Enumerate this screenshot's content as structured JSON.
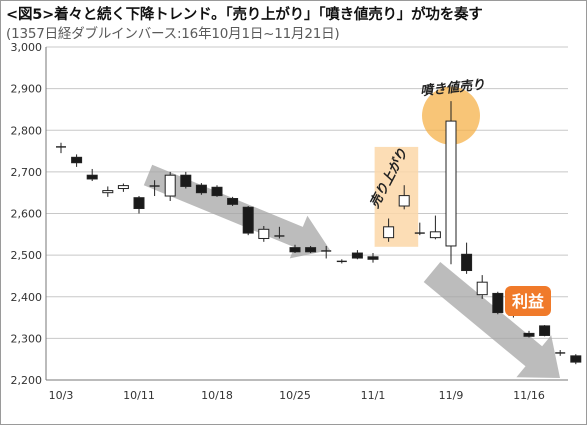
{
  "title": "<図5>着々と続く下降トレンド。「売り上がり」「噴き値売り」が功を奏す",
  "subtitle": "(1357日経ダブルインバース:16年10月1日~11月21日)",
  "chart_data": {
    "type": "candlestick",
    "ylim": [
      2200,
      3000
    ],
    "yticks": [
      2200,
      2300,
      2400,
      2500,
      2600,
      2700,
      2800,
      2900,
      3000
    ],
    "ytick_labels": [
      "2,200",
      "2,300",
      "2,400",
      "2,500",
      "2,600",
      "2,700",
      "2,800",
      "2,900",
      "3,000"
    ],
    "xtick_labels": [
      {
        "label": "10/3",
        "index": 0
      },
      {
        "label": "10/11",
        "index": 5
      },
      {
        "label": "10/18",
        "index": 10
      },
      {
        "label": "10/25",
        "index": 15
      },
      {
        "label": "11/1",
        "index": 20
      },
      {
        "label": "11/9",
        "index": 25
      },
      {
        "label": "11/16",
        "index": 30
      }
    ],
    "n_slots": 34,
    "grid": true,
    "candles": [
      {
        "index": 0,
        "open": 2760,
        "high": 2770,
        "low": 2745,
        "close": 2760
      },
      {
        "index": 1,
        "open": 2735,
        "high": 2742,
        "low": 2712,
        "close": 2722
      },
      {
        "index": 2,
        "open": 2692,
        "high": 2707,
        "low": 2678,
        "close": 2683
      },
      {
        "index": 3,
        "open": 2650,
        "high": 2665,
        "low": 2640,
        "close": 2655
      },
      {
        "index": 4,
        "open": 2660,
        "high": 2672,
        "low": 2652,
        "close": 2667
      },
      {
        "index": 5,
        "open": 2638,
        "high": 2642,
        "low": 2600,
        "close": 2612
      },
      {
        "index": 6,
        "open": 2666,
        "high": 2680,
        "low": 2642,
        "close": 2666
      },
      {
        "index": 7,
        "open": 2642,
        "high": 2700,
        "low": 2630,
        "close": 2692
      },
      {
        "index": 8,
        "open": 2692,
        "high": 2700,
        "low": 2660,
        "close": 2665
      },
      {
        "index": 9,
        "open": 2668,
        "high": 2673,
        "low": 2645,
        "close": 2650
      },
      {
        "index": 10,
        "open": 2663,
        "high": 2668,
        "low": 2640,
        "close": 2643
      },
      {
        "index": 11,
        "open": 2636,
        "high": 2640,
        "low": 2618,
        "close": 2622
      },
      {
        "index": 12,
        "open": 2615,
        "high": 2618,
        "low": 2548,
        "close": 2553
      },
      {
        "index": 13,
        "open": 2540,
        "high": 2570,
        "low": 2532,
        "close": 2562
      },
      {
        "index": 14,
        "open": 2546,
        "high": 2568,
        "low": 2540,
        "close": 2546
      },
      {
        "index": 15,
        "open": 2518,
        "high": 2525,
        "low": 2505,
        "close": 2508
      },
      {
        "index": 16,
        "open": 2518,
        "high": 2522,
        "low": 2505,
        "close": 2508
      },
      {
        "index": 17,
        "open": 2510,
        "high": 2522,
        "low": 2492,
        "close": 2510
      },
      {
        "index": 18,
        "open": 2485,
        "high": 2490,
        "low": 2480,
        "close": 2483
      },
      {
        "index": 19,
        "open": 2505,
        "high": 2512,
        "low": 2490,
        "close": 2493
      },
      {
        "index": 20,
        "open": 2496,
        "high": 2505,
        "low": 2482,
        "close": 2490
      },
      {
        "index": 21,
        "open": 2542,
        "high": 2588,
        "low": 2532,
        "close": 2568
      },
      {
        "index": 22,
        "open": 2618,
        "high": 2668,
        "low": 2610,
        "close": 2643
      },
      {
        "index": 23,
        "open": 2553,
        "high": 2578,
        "low": 2548,
        "close": 2553
      },
      {
        "index": 24,
        "open": 2542,
        "high": 2595,
        "low": 2538,
        "close": 2556
      },
      {
        "index": 25,
        "open": 2522,
        "high": 2870,
        "low": 2478,
        "close": 2822
      },
      {
        "index": 26,
        "open": 2502,
        "high": 2530,
        "low": 2455,
        "close": 2463
      },
      {
        "index": 27,
        "open": 2405,
        "high": 2452,
        "low": 2395,
        "close": 2435
      },
      {
        "index": 28,
        "open": 2408,
        "high": 2412,
        "low": 2358,
        "close": 2362
      },
      {
        "index": 29,
        "open": 2356,
        "high": 2362,
        "low": 2350,
        "close": 2356
      },
      {
        "index": 30,
        "open": 2312,
        "high": 2318,
        "low": 2302,
        "close": 2305
      },
      {
        "index": 31,
        "open": 2330,
        "high": 2332,
        "low": 2305,
        "close": 2307
      },
      {
        "index": 32,
        "open": 2265,
        "high": 2272,
        "low": 2258,
        "close": 2262
      },
      {
        "index": 33,
        "open": 2258,
        "high": 2262,
        "low": 2238,
        "close": 2243
      }
    ]
  },
  "annotations": {
    "sell_up_label": "売り上がり",
    "spike_sell_label": "噴き値売り",
    "profit_label": "利益"
  },
  "colors": {
    "bull_body": "#ffffff",
    "bear_body": "#1a1a1a",
    "highlight_box": "#fbd7a8",
    "highlight_circle": "#f6b24a",
    "arrow": "#a6a6a6",
    "profit_badge": "#f07a2a",
    "grid": "#c8c8c8"
  }
}
